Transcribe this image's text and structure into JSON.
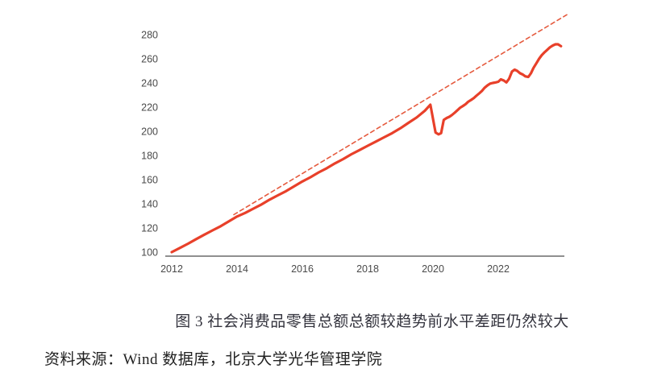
{
  "figure": {
    "caption": "图 3 社会消费品零售总额总额较趋势前水平差距仍然较大",
    "source": "资料来源：Wind 数据库，北京大学光华管理学院"
  },
  "chart_data": {
    "type": "line",
    "title": "",
    "xlabel": "",
    "ylabel": "",
    "grid": false,
    "legend": "none",
    "x_ticks": [
      2012,
      2014,
      2016,
      2018,
      2020,
      2022
    ],
    "y_ticks": [
      100,
      120,
      140,
      160,
      180,
      200,
      220,
      240,
      260,
      280
    ],
    "xlim": [
      2011.8,
      2024.3
    ],
    "ylim": [
      100,
      300
    ],
    "colors": {
      "actual_line": "#e8402a",
      "trend_line": "#e55a3e",
      "axis": "#8f8f8f",
      "tick_text": "#4a4a4a"
    },
    "series": [
      {
        "name": "actual-retail-sales-index",
        "style": "solid",
        "color": "#e8402a",
        "width": 3.2,
        "dash": "",
        "x": [
          2012.0,
          2012.25,
          2012.5,
          2012.75,
          2013.0,
          2013.25,
          2013.5,
          2013.75,
          2014.0,
          2014.25,
          2014.5,
          2014.75,
          2015.0,
          2015.25,
          2015.5,
          2015.75,
          2016.0,
          2016.25,
          2016.5,
          2016.75,
          2017.0,
          2017.25,
          2017.5,
          2017.75,
          2018.0,
          2018.25,
          2018.5,
          2018.75,
          2019.0,
          2019.25,
          2019.5,
          2019.75,
          2019.92,
          2020.08,
          2020.17,
          2020.25,
          2020.33,
          2020.42,
          2020.5,
          2020.58,
          2020.67,
          2020.75,
          2020.83,
          2020.92,
          2021.0,
          2021.08,
          2021.17,
          2021.25,
          2021.33,
          2021.42,
          2021.5,
          2021.58,
          2021.67,
          2021.75,
          2021.83,
          2021.92,
          2022.0,
          2022.08,
          2022.17,
          2022.25,
          2022.33,
          2022.42,
          2022.5,
          2022.58,
          2022.67,
          2022.75,
          2022.83,
          2022.92,
          2023.0,
          2023.08,
          2023.17,
          2023.25,
          2023.33,
          2023.42,
          2023.5,
          2023.58,
          2023.67,
          2023.75,
          2023.83,
          2023.92
        ],
        "y": [
          100,
          103.5,
          107,
          110.8,
          114.5,
          118,
          121.5,
          125.5,
          129.5,
          132.5,
          136,
          139.5,
          143.5,
          147,
          150.5,
          154.5,
          158.5,
          162,
          166,
          169.5,
          173.5,
          177,
          181,
          184.5,
          188,
          191.5,
          195,
          198.5,
          202.5,
          207,
          211.5,
          217,
          222,
          199,
          197.5,
          198.5,
          209.5,
          211,
          212,
          213.5,
          215.5,
          217.5,
          219.5,
          221,
          222.5,
          224.5,
          226,
          227.5,
          229.5,
          231.5,
          233.5,
          236,
          238,
          239.5,
          240,
          240.5,
          241,
          243,
          242,
          240.5,
          243.5,
          249.5,
          251,
          250,
          248,
          247,
          245.5,
          245,
          248,
          252.5,
          256.5,
          260,
          263,
          265.5,
          267.5,
          269.5,
          271,
          272,
          272,
          270.5
        ]
      },
      {
        "name": "pre-pandemic-trend",
        "style": "dashed",
        "color": "#e55a3e",
        "width": 1.6,
        "dash": "5,4",
        "x": [
          2013.9,
          2024.1
        ],
        "y": [
          131,
          296.5
        ]
      }
    ]
  }
}
